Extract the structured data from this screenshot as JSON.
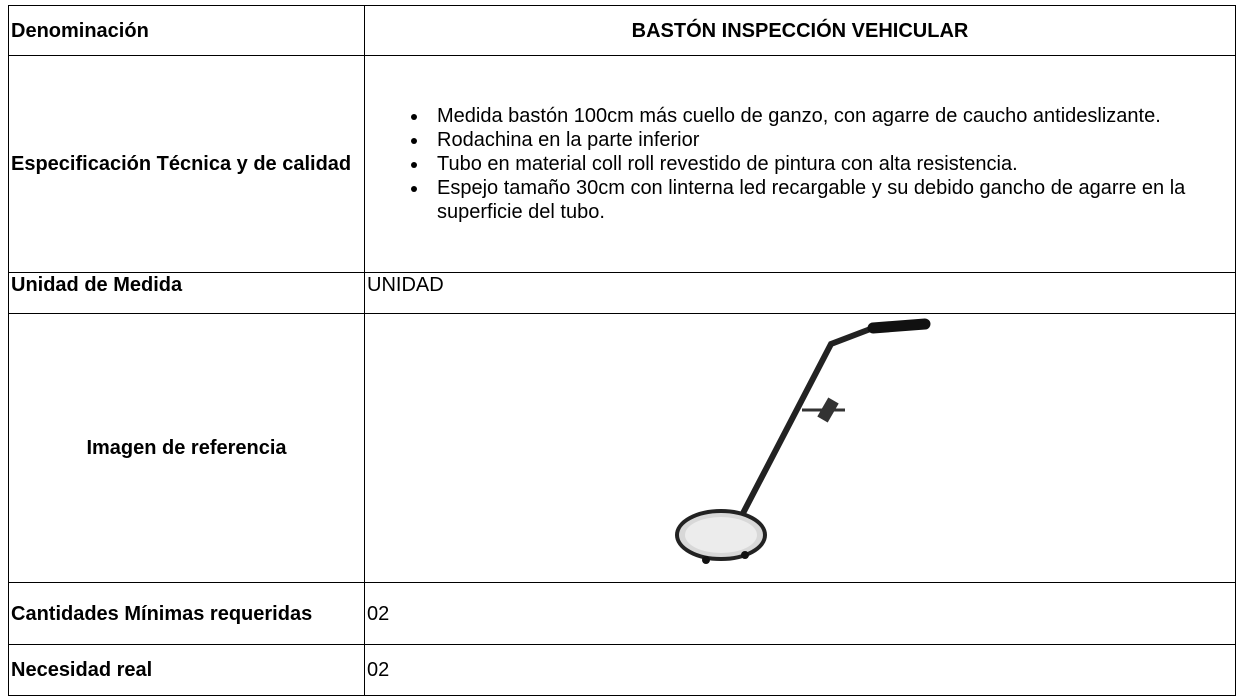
{
  "table": {
    "rows": [
      {
        "label": "Denominación",
        "value": "BASTÓN INSPECCIÓN VEHICULAR"
      },
      {
        "label": "Especificación Técnica y de calidad",
        "items": [
          "Medida bastón 100cm más cuello de ganzo, con agarre de caucho antideslizante.",
          "Rodachina en la parte inferior",
          "Tubo en material coll roll revestido de pintura con alta resistencia.",
          "Espejo tamaño 30cm con linterna led recargable y su debido gancho de agarre en la superficie del tubo."
        ]
      },
      {
        "label": "Unidad de Medida",
        "value": "UNIDAD"
      },
      {
        "label": "Imagen de referencia"
      },
      {
        "label": "Cantidades Mínimas requeridas",
        "value": "02"
      },
      {
        "label": "Necesidad real",
        "value": "02"
      }
    ]
  }
}
